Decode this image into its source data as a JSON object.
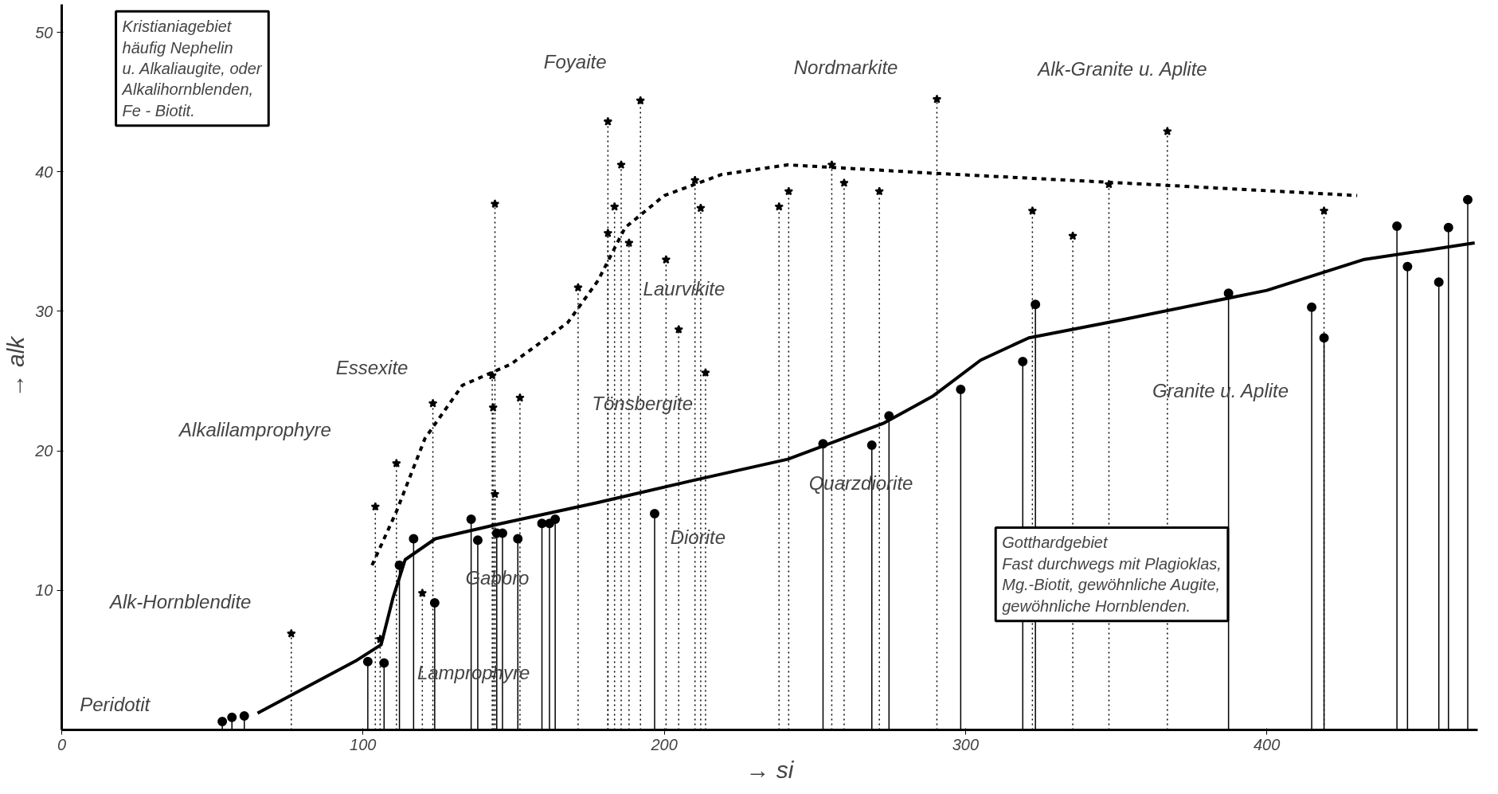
{
  "chart_data": {
    "type": "lollipop",
    "xlabel": "→ si",
    "ylabel": "→ alk",
    "xlim": [
      0,
      470
    ],
    "ylim": [
      0,
      52
    ],
    "xticks": [
      0,
      100,
      200,
      300,
      400
    ],
    "yticks": [
      10,
      20,
      30,
      40,
      50
    ],
    "grid": false,
    "series": [
      {
        "color": "#000000",
        "marker": "star",
        "line_style": "dotted",
        "x": [
          76.2,
          104.1,
          105.7,
          111.1,
          119.7,
          123.2,
          142.9,
          143.8,
          143.2,
          143.8,
          152.1,
          171.4,
          181.3,
          181.3,
          183.5,
          185.7,
          188.3,
          192.1,
          200.6,
          204.8,
          210.2,
          212.1,
          213.7,
          238.1,
          241.3,
          255.6,
          259.7,
          271.4,
          290.5,
          322.2,
          335.6,
          347.6,
          367.0,
          419.0
        ],
        "values": [
          6.9,
          16.0,
          6.5,
          19.1,
          9.8,
          23.4,
          25.4,
          37.7,
          23.1,
          16.9,
          23.8,
          31.7,
          43.6,
          35.6,
          37.5,
          40.5,
          34.9,
          45.1,
          33.7,
          28.7,
          39.4,
          37.4,
          25.6,
          37.5,
          38.6,
          40.5,
          39.2,
          38.6,
          45.2,
          37.2,
          35.4,
          39.1,
          42.9,
          37.2
        ]
      },
      {
        "color": "#000000",
        "marker": "circle",
        "line_style": "solid",
        "x": [
          53.3,
          56.5,
          60.6,
          101.6,
          107.0,
          112.1,
          116.8,
          123.8,
          135.9,
          138.1,
          144.4,
          146.3,
          151.4,
          159.4,
          161.9,
          163.8,
          196.8,
          252.7,
          268.9,
          274.6,
          298.4,
          319.0,
          323.2,
          387.3,
          414.9,
          419.0,
          443.2,
          446.7,
          457.1,
          460.3,
          466.7
        ],
        "values": [
          0.6,
          0.9,
          1.0,
          4.9,
          4.8,
          11.8,
          13.7,
          9.1,
          15.1,
          13.6,
          14.1,
          14.1,
          13.7,
          14.8,
          14.8,
          15.1,
          15.5,
          20.5,
          20.4,
          22.5,
          24.4,
          26.4,
          30.5,
          31.3,
          30.3,
          28.1,
          36.1,
          33.2,
          32.1,
          36.0,
          38.0
        ]
      },
      {
        "type": "line",
        "color": "#000000",
        "line_style": "dashed",
        "x": [
          103,
          111,
          120.6,
          133,
          149,
          168,
          178,
          187,
          200,
          219,
          241,
          289,
          352,
          430
        ],
        "values": [
          11.8,
          15.6,
          20.9,
          24.7,
          26.2,
          29.2,
          32.2,
          36,
          38.3,
          39.8,
          40.5,
          39.9,
          39.2,
          38.3
        ]
      },
      {
        "type": "line",
        "color": "#000000",
        "line_style": "solid",
        "x": [
          65,
          98,
          106,
          110,
          114,
          124,
          146,
          178,
          210,
          241,
          273,
          289,
          305,
          321,
          352,
          400,
          432,
          469
        ],
        "values": [
          1.2,
          5,
          6.1,
          9.5,
          12.2,
          13.7,
          14.8,
          16.3,
          17.9,
          19.4,
          22,
          23.9,
          26.5,
          28.1,
          29.4,
          31.5,
          33.7,
          34.9
        ]
      }
    ],
    "annotations": [
      "Kristianiagebiet\nhäufig Nephelin\nu. Alkaliaugite, oder\nAlkalihornblenden,\nFe - Biotit.",
      "Gotthardgebiet\nFast durchwegs mit Plagioklas,\nMg.-Biotit, gewöhnliche Augite,\ngewöhnliche Hornblenden.",
      "Peridotit",
      "Alk-Hornblendite",
      "Alkalilamprophyre",
      "Essexite",
      "Lamprophyre",
      "Gabbro",
      "Foyaite",
      "Laurvikite",
      "Tönsbergite",
      "Diorite",
      "Nordmarkite",
      "Quarzdiorite",
      "Alk-Granite u. Aplite",
      "Granite u. Aplite"
    ]
  }
}
